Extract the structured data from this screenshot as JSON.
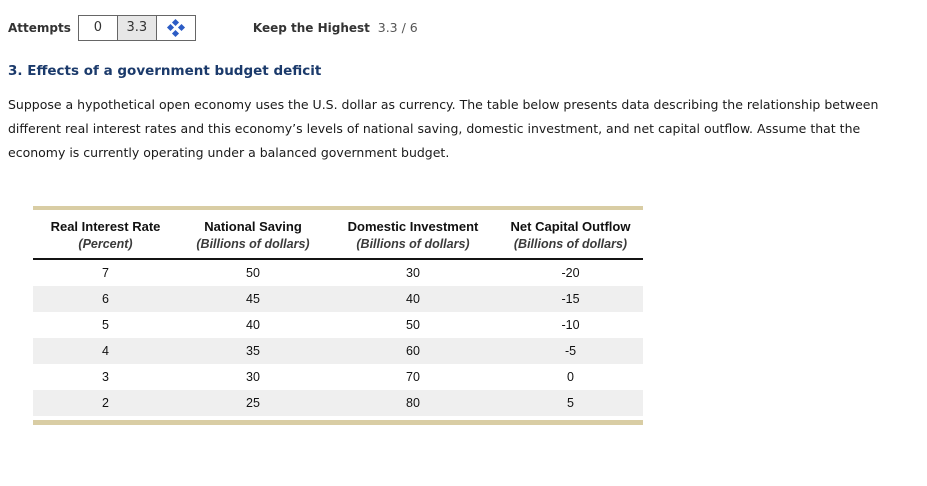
{
  "attempts_bar": {
    "label": "Attempts",
    "attempt_count": "0",
    "score": "3.3",
    "grade_icon": "four-diamond-icon",
    "keep_label": "Keep the Highest",
    "keep_value": "3.3 / 6"
  },
  "question": {
    "title": "3. Effects of a government budget deficit",
    "paragraph": "Suppose a hypothetical open economy uses the U.S. dollar as currency. The table below presents data describing the relationship between different real interest rates and this economy’s levels of national saving, domestic investment, and net capital outflow. Assume that the economy is currently operating under a balanced government budget."
  },
  "table": {
    "columns": [
      {
        "title": "Real Interest Rate",
        "subtitle": "(Percent)"
      },
      {
        "title": "National Saving",
        "subtitle": "(Billions of dollars)"
      },
      {
        "title": "Domestic Investment",
        "subtitle": "(Billions of dollars)"
      },
      {
        "title": "Net Capital Outflow",
        "subtitle": "(Billions of dollars)"
      }
    ],
    "rows": [
      [
        "7",
        "50",
        "30",
        "-20"
      ],
      [
        "6",
        "45",
        "40",
        "-15"
      ],
      [
        "5",
        "40",
        "50",
        "-10"
      ],
      [
        "4",
        "35",
        "60",
        "-5"
      ],
      [
        "3",
        "30",
        "70",
        "0"
      ],
      [
        "2",
        "25",
        "80",
        "5"
      ]
    ]
  },
  "colors": {
    "accent_tan": "#d9cda4",
    "heading_navy": "#1b3a6b",
    "icon_blue": "#2c5cc5",
    "row_stripe": "#efefef"
  }
}
